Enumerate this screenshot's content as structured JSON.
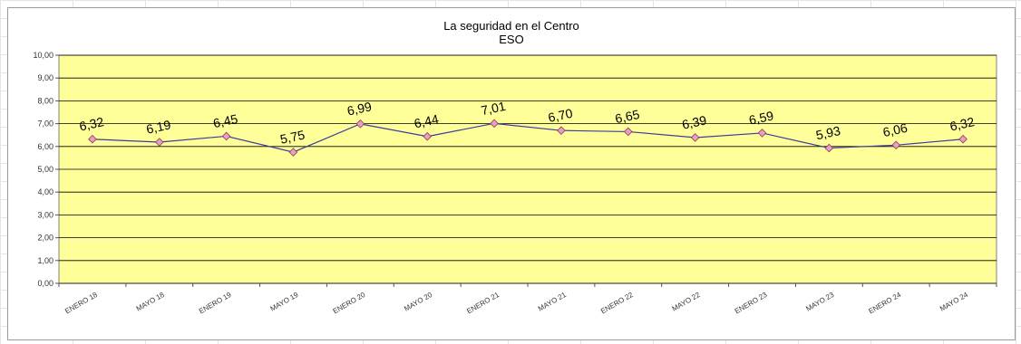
{
  "chart_data": {
    "type": "line",
    "title": "La seguridad en el Centro",
    "subtitle": "ESO",
    "xlabel": "",
    "ylabel": "",
    "categories": [
      "ENERO 18",
      "MAYO 18",
      "ENERO 19",
      "MAYO 19",
      "ENERO 20",
      "MAYO 20",
      "ENERO 21",
      "MAYO 21",
      "ENERO 22",
      "MAYO 22",
      "ENERO 23",
      "MAYO 23",
      "ENERO 24",
      "MAYO 24"
    ],
    "values": [
      6.32,
      6.19,
      6.45,
      5.75,
      6.99,
      6.44,
      7.01,
      6.7,
      6.65,
      6.39,
      6.59,
      5.93,
      6.06,
      6.32
    ],
    "data_labels": [
      "6,32",
      "6,19",
      "6,45",
      "5,75",
      "6,99",
      "6,44",
      "7,01",
      "6,70",
      "6,65",
      "6,39",
      "6,59",
      "5,93",
      "6,06",
      "6,32"
    ],
    "ylim": [
      0,
      10
    ],
    "y_ticks": [
      "0,00",
      "1,00",
      "2,00",
      "3,00",
      "4,00",
      "5,00",
      "6,00",
      "7,00",
      "8,00",
      "9,00",
      "10,00"
    ],
    "grid": true,
    "legend": "none",
    "colors": {
      "plot_background": "#ffff99",
      "line": "#3b3b9c",
      "marker": "#e8a0c0",
      "marker_stroke": "#8a3a5a",
      "gridline": "#000000"
    }
  }
}
